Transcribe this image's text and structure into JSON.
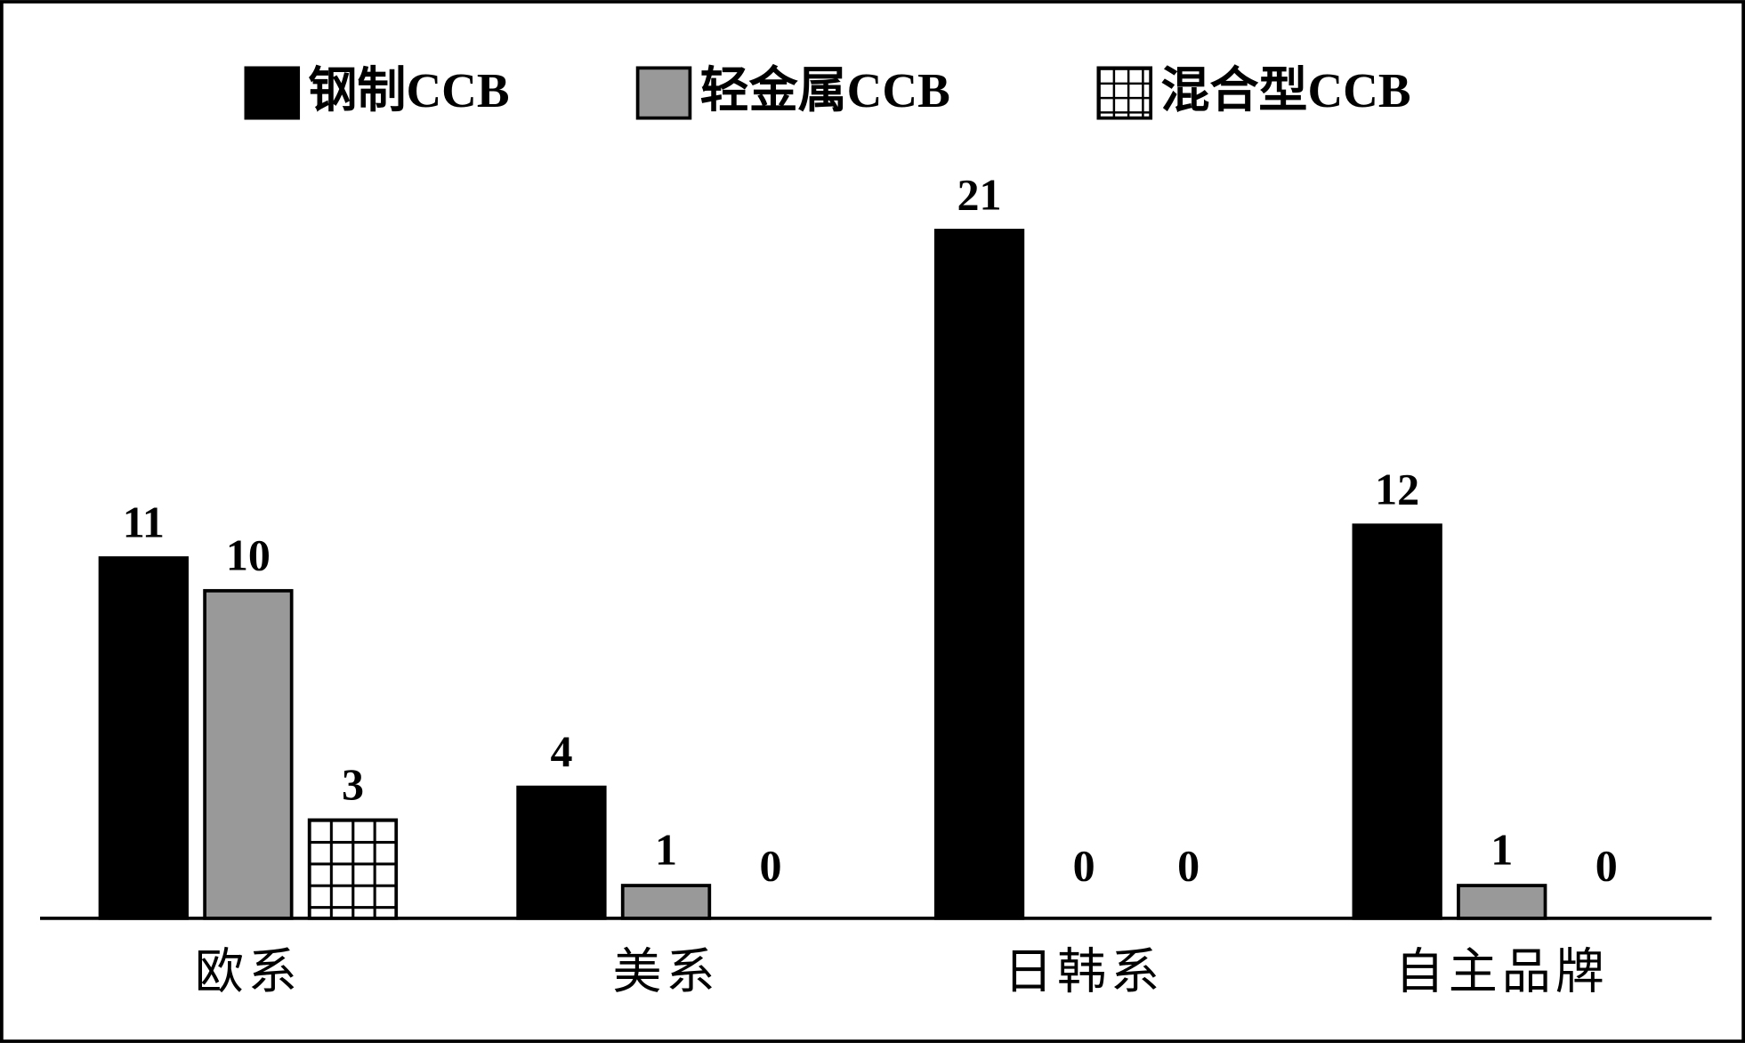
{
  "chart_data": {
    "type": "bar",
    "categories": [
      "欧系",
      "美系",
      "日韩系",
      "自主品牌"
    ],
    "series": [
      {
        "name": "钢制CCB",
        "color": "#000000",
        "values": [
          11,
          4,
          21,
          12
        ]
      },
      {
        "name": "轻金属CCB",
        "color": "#999999",
        "values": [
          10,
          1,
          0,
          1
        ]
      },
      {
        "name": "混合型CCB",
        "color": "grid-hatch",
        "values": [
          3,
          0,
          0,
          0
        ]
      }
    ],
    "ylim": [
      0,
      21
    ]
  }
}
